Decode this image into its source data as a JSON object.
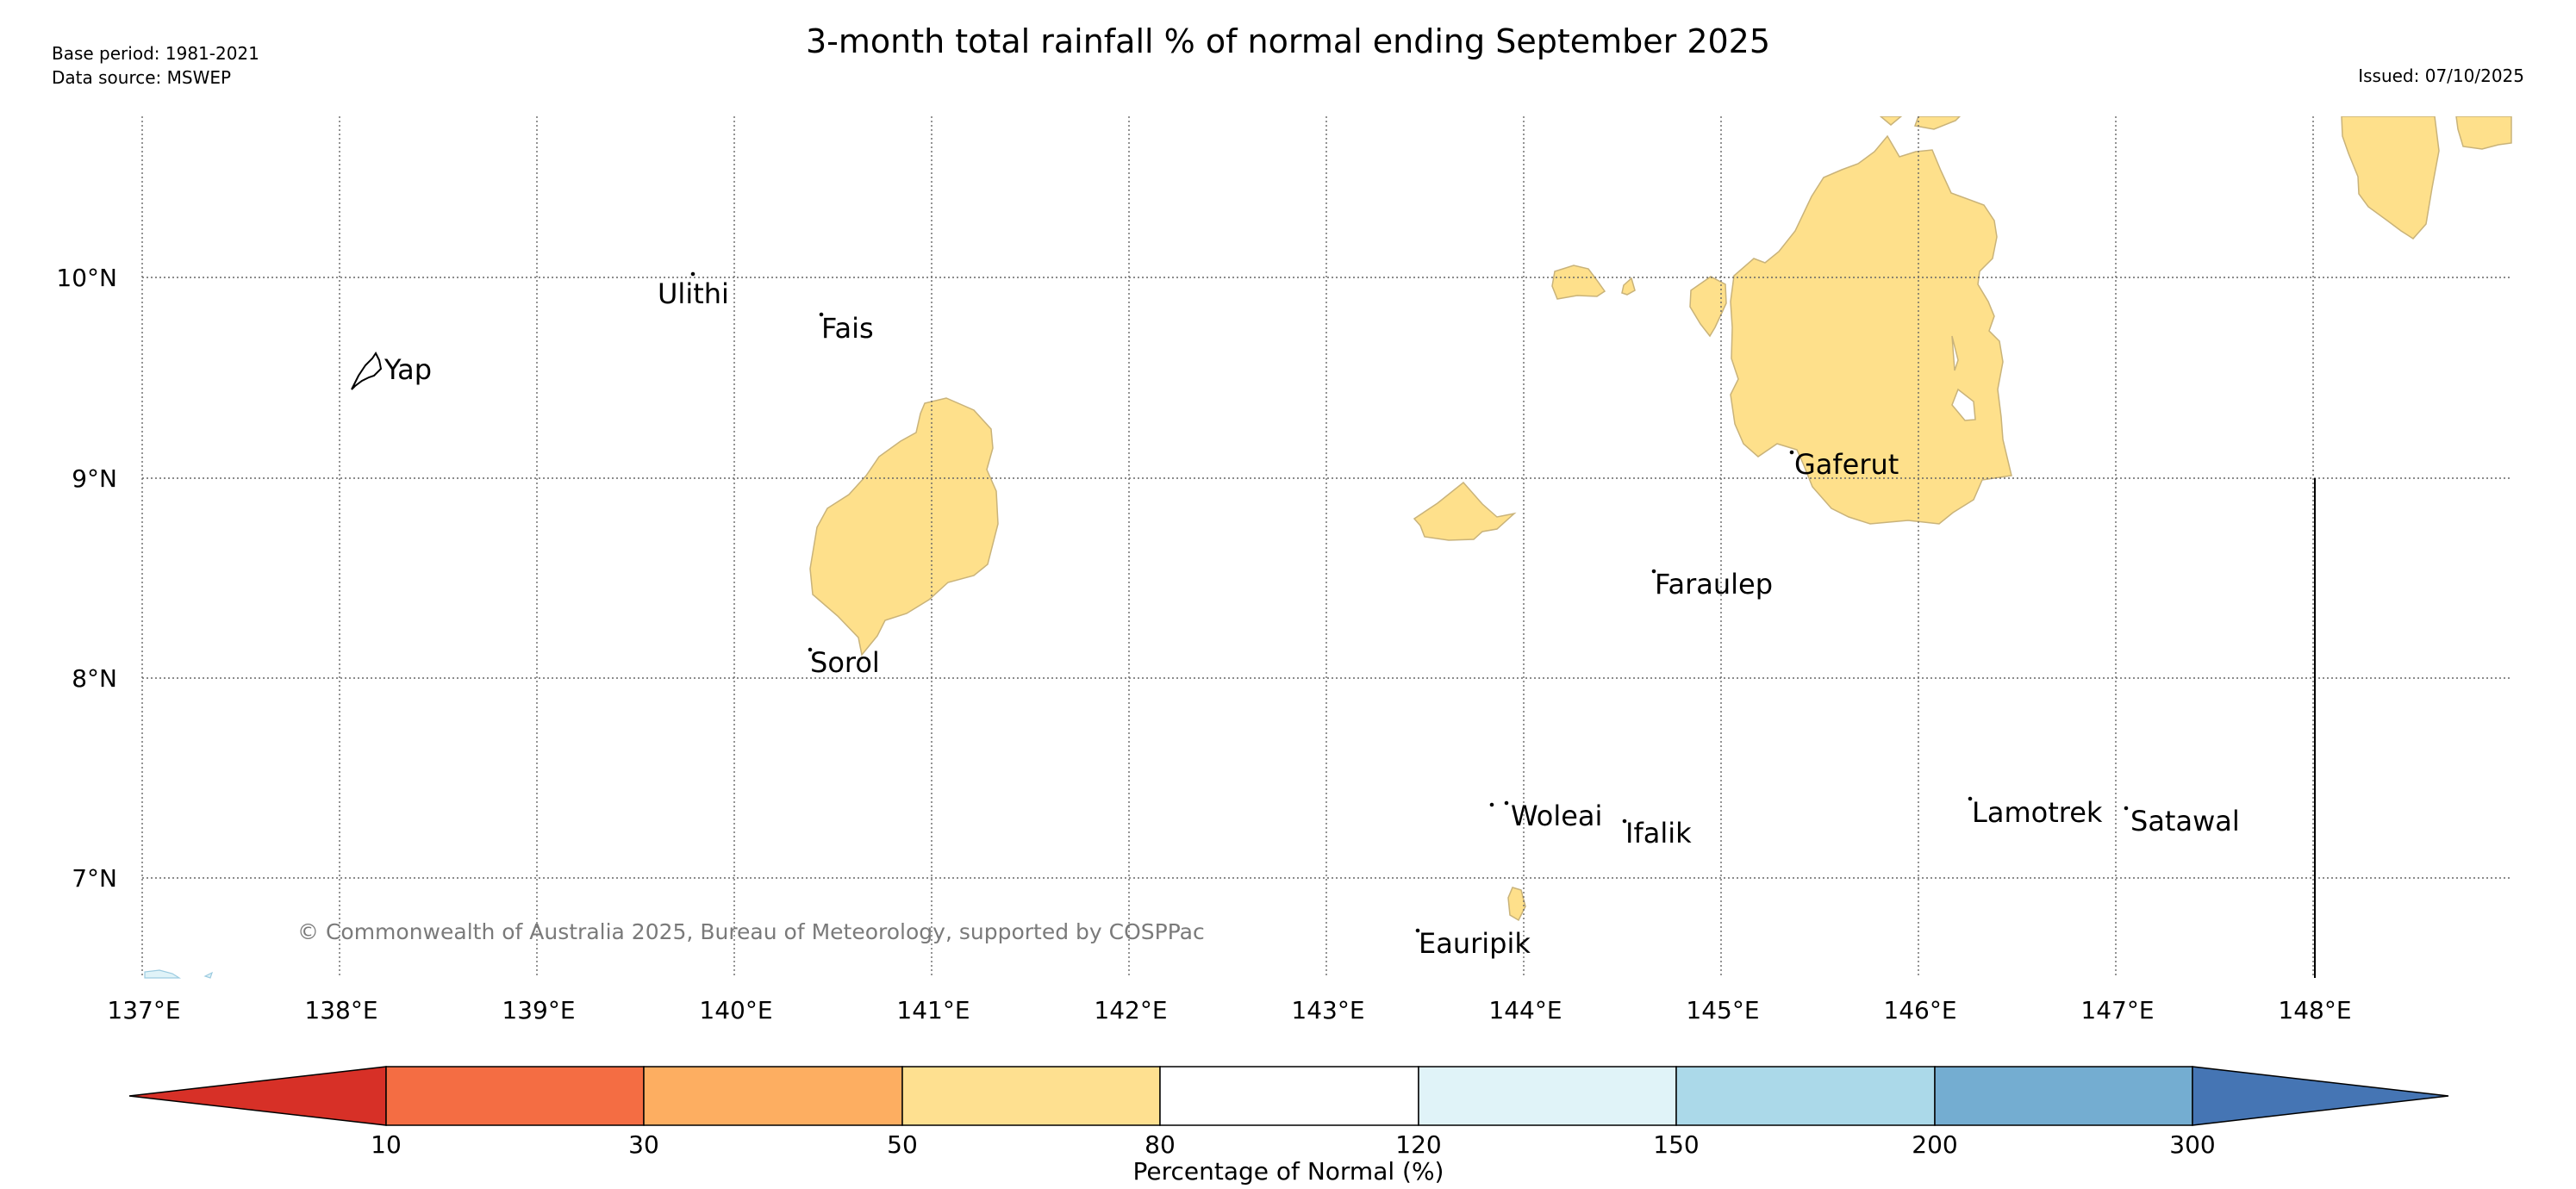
{
  "header": {
    "title": "3-month total rainfall % of normal ending September 2025",
    "base_period": "Base period: 1981-2021",
    "data_source": "Data source: MSWEP",
    "issued": "Issued: 07/10/2025"
  },
  "map": {
    "lon_labels": [
      "137°E",
      "138°E",
      "139°E",
      "140°E",
      "141°E",
      "142°E",
      "143°E",
      "144°E",
      "145°E",
      "146°E",
      "147°E",
      "148°E"
    ],
    "lat_labels": [
      "10°N",
      "9°N",
      "8°N",
      "7°N"
    ],
    "islands": [
      "Yap",
      "Ulithi",
      "Fais",
      "Sorol",
      "Gaferut",
      "Faraulep",
      "Woleai",
      "Ifalik",
      "Lamotrek",
      "Satawal",
      "Eauripik"
    ],
    "copyright": "© Commonwealth of Australia 2025, Bureau of Meteorology, supported by COSPPac",
    "fill_colors": {
      "band_50_80": "#fee08b",
      "band_120_150": "#e0f3f8",
      "gridline": "#666666"
    }
  },
  "colorbar": {
    "title": "Percentage of Normal (%)",
    "ticks": [
      "10",
      "30",
      "50",
      "80",
      "120",
      "150",
      "200",
      "300"
    ],
    "colors": [
      "#d73027",
      "#f46d43",
      "#fdae61",
      "#fee090",
      "#ffffff",
      "#e0f3f8",
      "#abd9e9",
      "#74add1",
      "#4575b4"
    ]
  }
}
